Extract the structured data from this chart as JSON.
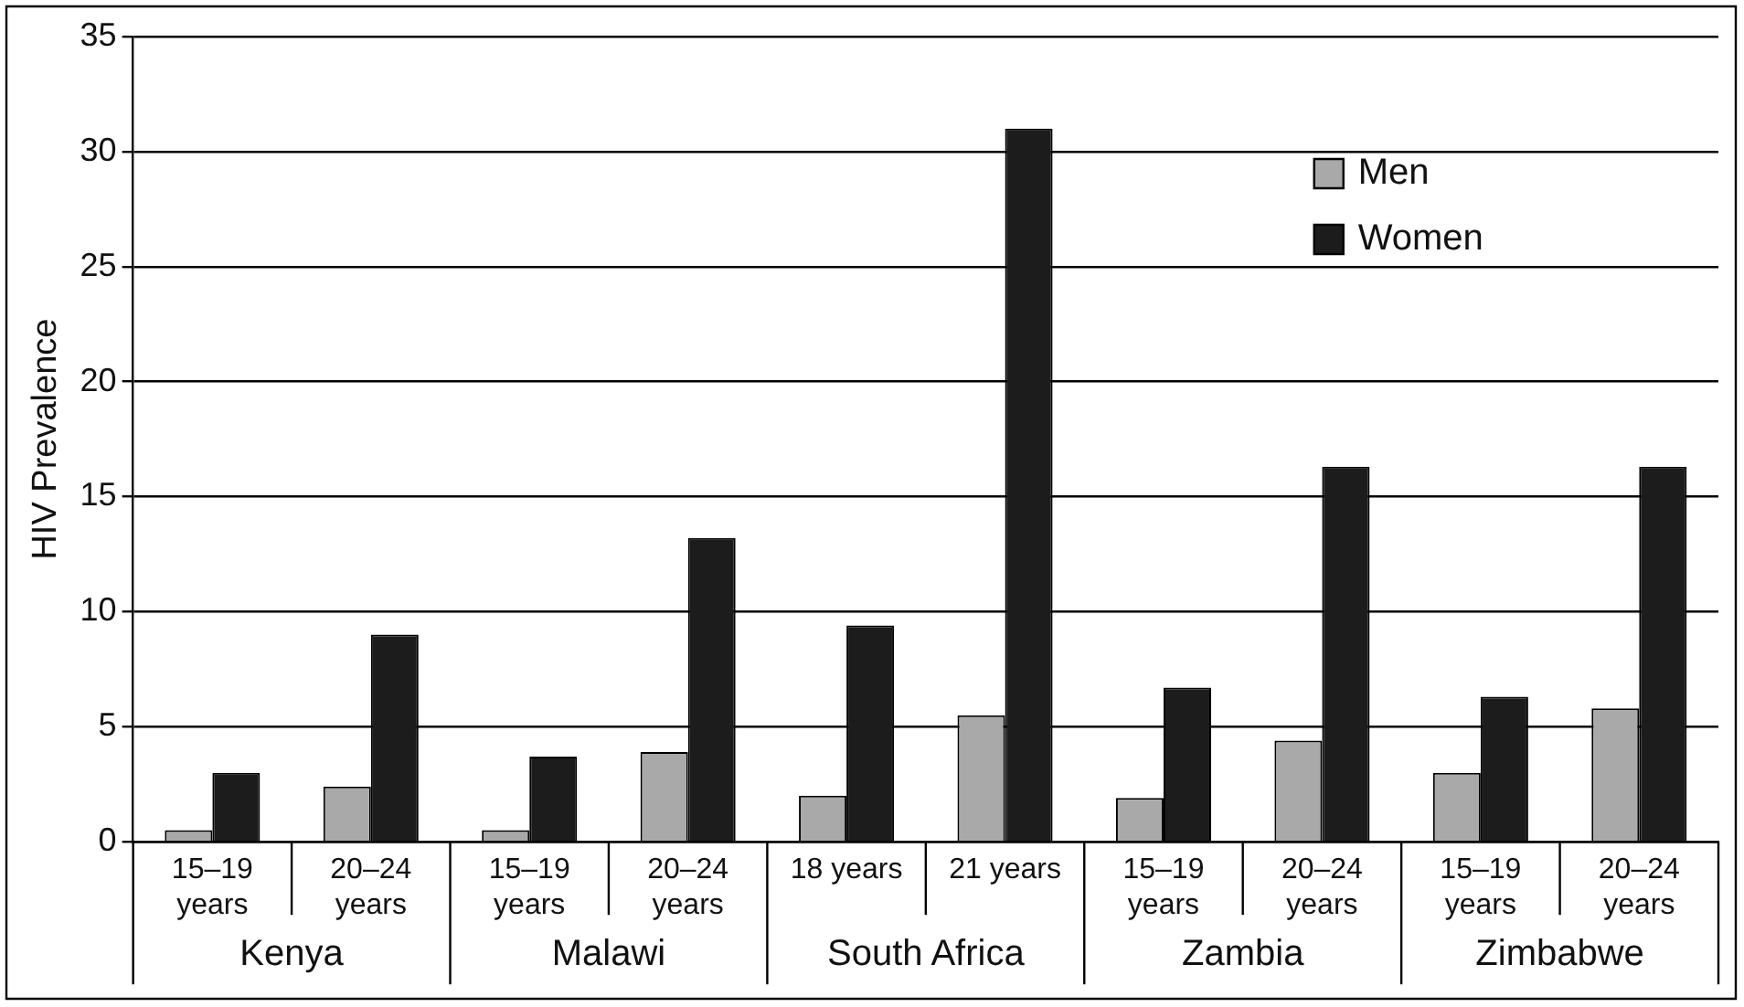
{
  "chart_data": {
    "type": "bar",
    "ylabel": "HIV Prevalence",
    "categories": [
      "15–19 years",
      "20–24 years",
      "15–19 years",
      "20–24 years",
      "18 years",
      "21 years",
      "15–19 years",
      "20–24 years",
      "15–19 years",
      "20–24 years"
    ],
    "series": [
      {
        "name": "Men",
        "color": "#a9a9a9",
        "values": [
          0.5,
          2.4,
          0.5,
          3.9,
          2.0,
          5.5,
          1.9,
          4.4,
          3.0,
          5.8
        ]
      },
      {
        "name": "Women",
        "color": "#1c1c1c",
        "values": [
          3.0,
          9.0,
          3.7,
          13.2,
          9.4,
          31.0,
          6.7,
          16.3,
          6.3,
          16.3
        ]
      }
    ],
    "annotations": [
      "Kenya",
      "Malawi",
      "South Africa",
      "Zambia",
      "Zimbabwe"
    ],
    "ylim": [
      0,
      35
    ],
    "yticks": [
      0,
      5,
      10,
      15,
      20,
      25,
      30,
      35
    ],
    "grid": "y",
    "legend": "top right"
  }
}
